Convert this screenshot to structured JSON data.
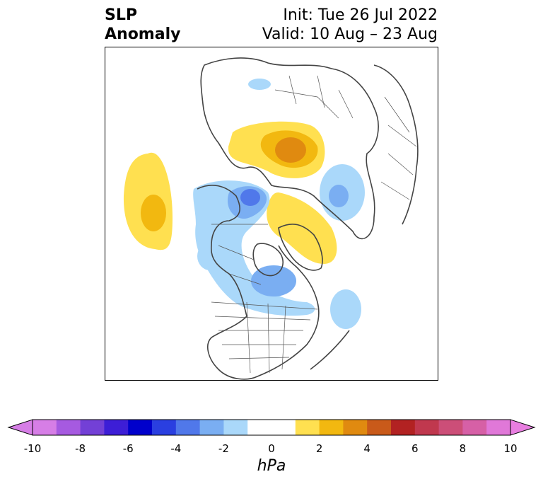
{
  "header": {
    "title_line1": "SLP",
    "title_line2": "Anomaly",
    "init_text": "Init: Tue 26 Jul 2022",
    "valid_text": "Valid: 10 Aug – 23 Aug"
  },
  "colorbar": {
    "unit": "hPa",
    "ticks": [
      "-10",
      "-8",
      "-6",
      "-4",
      "-2",
      "0",
      "2",
      "4",
      "6",
      "8",
      "10"
    ],
    "bins": [
      {
        "from": -10,
        "to": -9,
        "color": "#d67ee6"
      },
      {
        "from": -9,
        "to": -8,
        "color": "#a65ae0"
      },
      {
        "from": -8,
        "to": -7,
        "color": "#7340d6"
      },
      {
        "from": -7,
        "to": -6,
        "color": "#3d1ed6"
      },
      {
        "from": -6,
        "to": -5,
        "color": "#0000cc"
      },
      {
        "from": -5,
        "to": -4,
        "color": "#2a3fe0"
      },
      {
        "from": -4,
        "to": -3,
        "color": "#5078ea"
      },
      {
        "from": -3,
        "to": -2,
        "color": "#7aaef2"
      },
      {
        "from": -2,
        "to": -1,
        "color": "#aad8fa"
      },
      {
        "from": -1,
        "to": 1,
        "color": "#ffffff"
      },
      {
        "from": 1,
        "to": 2,
        "color": "#ffe050"
      },
      {
        "from": 2,
        "to": 3,
        "color": "#f2b810"
      },
      {
        "from": 3,
        "to": 4,
        "color": "#e08a10"
      },
      {
        "from": 4,
        "to": 5,
        "color": "#c95a1a"
      },
      {
        "from": 5,
        "to": 6,
        "color": "#b22222"
      },
      {
        "from": 6,
        "to": 7,
        "color": "#c0384e"
      },
      {
        "from": 7,
        "to": 8,
        "color": "#cc4e78"
      },
      {
        "from": 8,
        "to": 9,
        "color": "#d660a6"
      },
      {
        "from": 9,
        "to": 10,
        "color": "#e078d8"
      }
    ],
    "extend_low_color": "#d67ee6",
    "extend_high_color": "#e87ee0"
  },
  "map": {
    "projection": "north-polar-stereographic",
    "region": "Northern Hemisphere",
    "anomalies": [
      {
        "name": "north-pacific-high",
        "sign": "positive",
        "peak_hpa": 3
      },
      {
        "name": "barents-kara-high",
        "sign": "positive",
        "peak_hpa": 4
      },
      {
        "name": "greenland-high",
        "sign": "positive",
        "peak_hpa": 2
      },
      {
        "name": "beaufort-low",
        "sign": "negative",
        "peak_hpa": -4
      },
      {
        "name": "hudson-bay-low",
        "sign": "negative",
        "peak_hpa": -3
      },
      {
        "name": "north-atlantic-low",
        "sign": "negative",
        "peak_hpa": -2
      },
      {
        "name": "siberia-low",
        "sign": "negative",
        "peak_hpa": -2
      }
    ]
  }
}
